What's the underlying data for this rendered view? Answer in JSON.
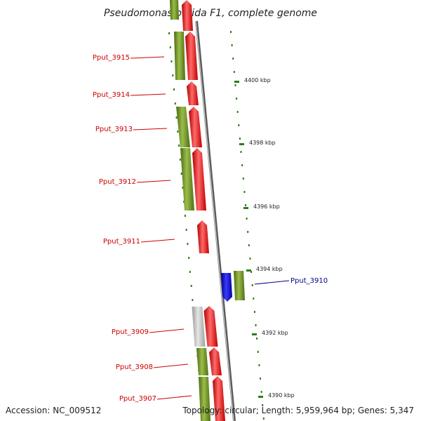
{
  "title": "Pseudomonas putida F1, complete genome",
  "footer": {
    "accession": "Accession: NC_009512",
    "summary": "Topology: circular; Length: 5,959,964 bp; Genes: 5,347"
  },
  "colors": {
    "backbone": "#8c8c8c",
    "cds": "#ff0000",
    "gene": "#6b8e23",
    "pseudo": "#bdbdbd",
    "highlight": "#0000cc",
    "tick": "#2e7d1a",
    "label_default": "#cc0000",
    "label_highlight": "#00008b"
  },
  "scale": {
    "unit": "kbp",
    "ticks": [
      "4400 kbp",
      "4398 kbp",
      "4396 kbp",
      "4394 kbp",
      "4392 kbp",
      "4390 kbp"
    ]
  },
  "genes": [
    {
      "name": "Pput_3915",
      "highlight": false
    },
    {
      "name": "Pput_3914",
      "highlight": false
    },
    {
      "name": "Pput_3913",
      "highlight": false
    },
    {
      "name": "Pput_3912",
      "highlight": false
    },
    {
      "name": "Pput_3911",
      "highlight": false
    },
    {
      "name": "Pput_3910",
      "highlight": true
    },
    {
      "name": "Pput_3909",
      "highlight": false
    },
    {
      "name": "Pput_3908",
      "highlight": false
    },
    {
      "name": "Pput_3907",
      "highlight": false
    }
  ]
}
